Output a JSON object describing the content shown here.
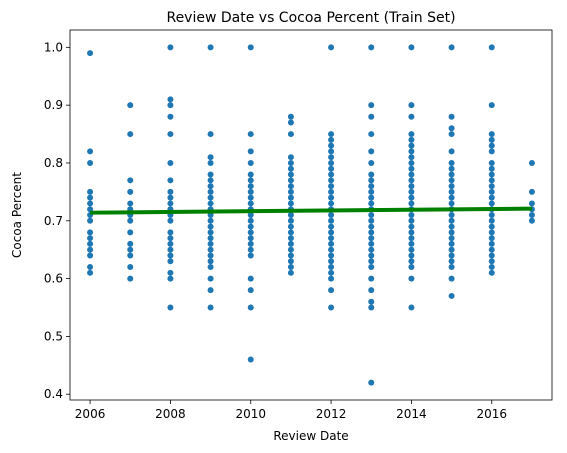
{
  "chart_data": {
    "type": "scatter",
    "title": "Review Date vs Cocoa Percent (Train Set)",
    "xlabel": "Review Date",
    "ylabel": "Cocoa Percent",
    "xlim": [
      2005.5,
      2017.5
    ],
    "ylim": [
      0.39,
      1.03
    ],
    "xticks": [
      2006,
      2008,
      2010,
      2012,
      2014,
      2016
    ],
    "xtick_labels": [
      "2006",
      "2008",
      "2010",
      "2012",
      "2014",
      "2016"
    ],
    "yticks": [
      0.4,
      0.5,
      0.6,
      0.7,
      0.8,
      0.9,
      1.0
    ],
    "ytick_labels": [
      "0.4",
      "0.5",
      "0.6",
      "0.7",
      "0.8",
      "0.9",
      "1.0"
    ],
    "grid": false,
    "point_color": "#1f77b4",
    "line_color": "#008000",
    "points_by_year": [
      {
        "x": 2006,
        "y": [
          0.99,
          0.82,
          0.8,
          0.75,
          0.74,
          0.73,
          0.72,
          0.71,
          0.7,
          0.68,
          0.67,
          0.66,
          0.65,
          0.64,
          0.62,
          0.61
        ]
      },
      {
        "x": 2007,
        "y": [
          0.9,
          0.85,
          0.77,
          0.75,
          0.73,
          0.72,
          0.71,
          0.7,
          0.68,
          0.66,
          0.65,
          0.64,
          0.62,
          0.6
        ]
      },
      {
        "x": 2008,
        "y": [
          1.0,
          0.91,
          0.9,
          0.88,
          0.85,
          0.8,
          0.77,
          0.75,
          0.74,
          0.73,
          0.72,
          0.71,
          0.7,
          0.68,
          0.67,
          0.66,
          0.65,
          0.64,
          0.63,
          0.61,
          0.6,
          0.55
        ]
      },
      {
        "x": 2009,
        "y": [
          1.0,
          0.85,
          0.81,
          0.8,
          0.78,
          0.77,
          0.76,
          0.75,
          0.74,
          0.73,
          0.72,
          0.71,
          0.7,
          0.69,
          0.68,
          0.67,
          0.66,
          0.65,
          0.64,
          0.63,
          0.62,
          0.6,
          0.58,
          0.55
        ]
      },
      {
        "x": 2010,
        "y": [
          1.0,
          0.85,
          0.82,
          0.8,
          0.78,
          0.77,
          0.76,
          0.75,
          0.74,
          0.73,
          0.72,
          0.71,
          0.7,
          0.69,
          0.68,
          0.67,
          0.66,
          0.65,
          0.64,
          0.6,
          0.58,
          0.55,
          0.46
        ]
      },
      {
        "x": 2011,
        "y": [
          0.88,
          0.87,
          0.85,
          0.81,
          0.8,
          0.79,
          0.78,
          0.77,
          0.76,
          0.75,
          0.74,
          0.73,
          0.72,
          0.71,
          0.7,
          0.69,
          0.68,
          0.67,
          0.66,
          0.65,
          0.64,
          0.63,
          0.62,
          0.61
        ]
      },
      {
        "x": 2012,
        "y": [
          1.0,
          0.85,
          0.84,
          0.83,
          0.82,
          0.81,
          0.8,
          0.79,
          0.78,
          0.77,
          0.76,
          0.75,
          0.74,
          0.73,
          0.72,
          0.71,
          0.7,
          0.69,
          0.68,
          0.67,
          0.66,
          0.65,
          0.64,
          0.63,
          0.62,
          0.61,
          0.6,
          0.58,
          0.55
        ]
      },
      {
        "x": 2013,
        "y": [
          1.0,
          0.9,
          0.88,
          0.85,
          0.82,
          0.8,
          0.78,
          0.77,
          0.76,
          0.75,
          0.74,
          0.73,
          0.72,
          0.71,
          0.7,
          0.69,
          0.68,
          0.67,
          0.66,
          0.65,
          0.64,
          0.63,
          0.62,
          0.6,
          0.58,
          0.56,
          0.55,
          0.42
        ]
      },
      {
        "x": 2014,
        "y": [
          1.0,
          0.9,
          0.88,
          0.85,
          0.84,
          0.83,
          0.82,
          0.81,
          0.8,
          0.79,
          0.78,
          0.77,
          0.76,
          0.75,
          0.74,
          0.73,
          0.72,
          0.71,
          0.7,
          0.69,
          0.68,
          0.67,
          0.66,
          0.65,
          0.64,
          0.63,
          0.62,
          0.6,
          0.55
        ]
      },
      {
        "x": 2015,
        "y": [
          1.0,
          0.88,
          0.86,
          0.85,
          0.82,
          0.8,
          0.79,
          0.78,
          0.77,
          0.76,
          0.75,
          0.74,
          0.73,
          0.72,
          0.71,
          0.7,
          0.69,
          0.68,
          0.67,
          0.66,
          0.65,
          0.64,
          0.63,
          0.62,
          0.6,
          0.57
        ]
      },
      {
        "x": 2016,
        "y": [
          1.0,
          0.9,
          0.85,
          0.84,
          0.83,
          0.82,
          0.8,
          0.79,
          0.78,
          0.77,
          0.76,
          0.75,
          0.74,
          0.73,
          0.72,
          0.71,
          0.7,
          0.69,
          0.68,
          0.67,
          0.66,
          0.65,
          0.64,
          0.63,
          0.62,
          0.61
        ]
      },
      {
        "x": 2017,
        "y": [
          0.8,
          0.75,
          0.73,
          0.72,
          0.71,
          0.7
        ]
      }
    ],
    "regression_line": {
      "x": [
        2006,
        2017
      ],
      "y": [
        0.714,
        0.721
      ]
    }
  }
}
